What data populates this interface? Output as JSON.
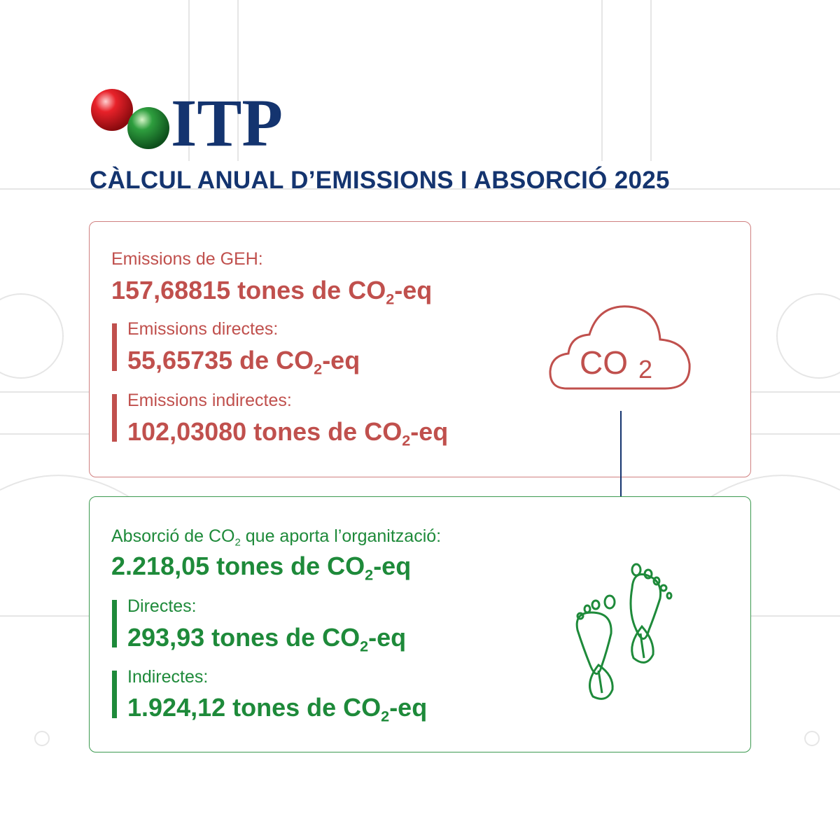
{
  "logo": {
    "text": "ITP"
  },
  "title": "CÀLCUL ANUAL D’EMISSIONS I ABSORCIÓ 2025",
  "emissions": {
    "label": "Emissions de GEH:",
    "total": [
      "157,68815 tones de CO",
      "2",
      "-eq"
    ],
    "items": [
      {
        "label": "Emissions directes:",
        "value": [
          "55,65735 de CO",
          "2",
          "-eq"
        ]
      },
      {
        "label": "Emissions indirectes:",
        "value": [
          "102,03080 tones de CO",
          "2",
          "-eq"
        ]
      }
    ]
  },
  "icon": [
    "CO",
    "2"
  ],
  "absorption": {
    "label": [
      "Absorció de CO",
      "2",
      " que aporta l’organització:"
    ],
    "total": [
      "2.218,05 tones de CO",
      "2",
      "-eq"
    ],
    "items": [
      {
        "label": "Directes:",
        "value": [
          "293,93 tones de CO",
          "2",
          "-eq"
        ]
      },
      {
        "label": "Indirectes:",
        "value": [
          "1.924,12 tones de CO",
          "2",
          "-eq"
        ]
      }
    ]
  }
}
